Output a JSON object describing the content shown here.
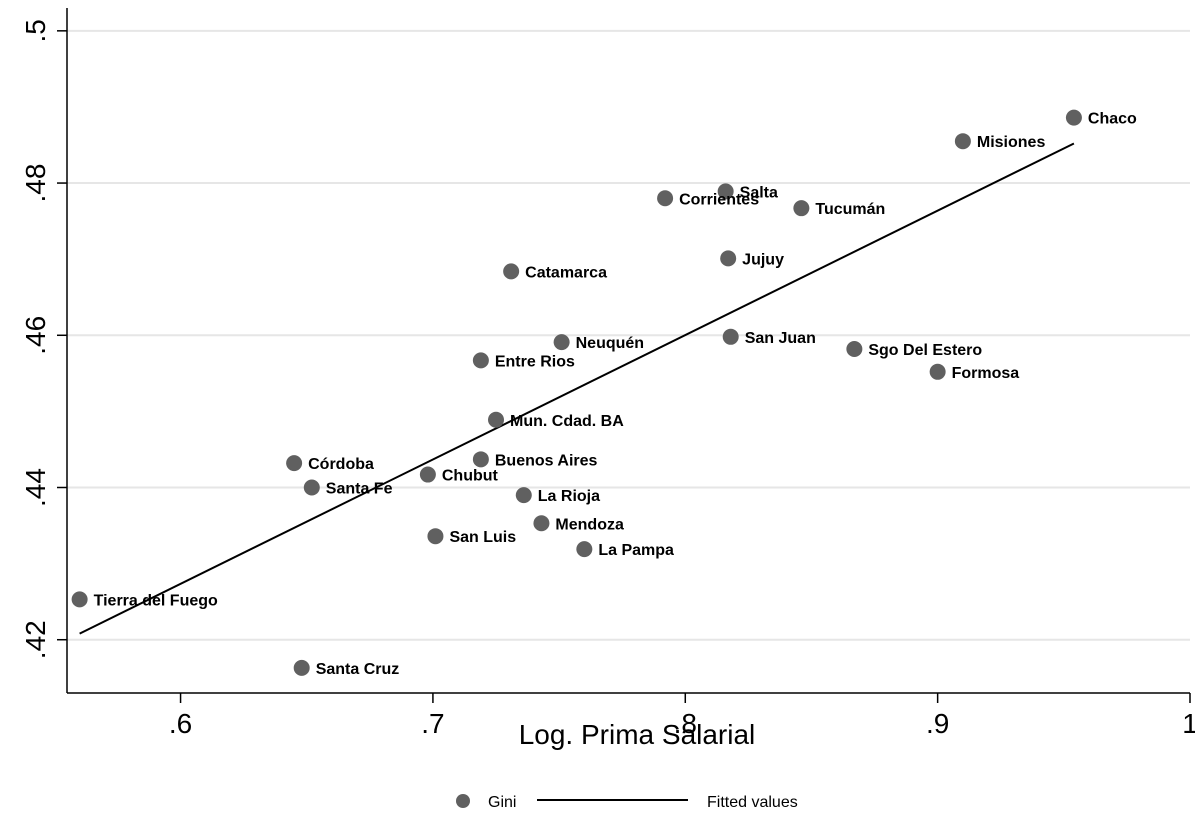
{
  "chart_data": {
    "type": "scatter",
    "xlabel": "Log. Prima Salarial",
    "ylabel": "",
    "xlim": [
      0.555,
      1.0
    ],
    "ylim": [
      0.413,
      0.503
    ],
    "x_ticks": [
      0.6,
      0.7,
      0.8,
      0.9,
      1.0
    ],
    "x_tick_labels": [
      ".6",
      ".7",
      ".8",
      ".9",
      "1"
    ],
    "y_ticks": [
      0.42,
      0.44,
      0.46,
      0.48,
      0.5
    ],
    "y_tick_labels": [
      ".42",
      ".44",
      ".46",
      ".48",
      ".5"
    ],
    "grid": "horizontal",
    "legend_position": "bottom",
    "colors": {
      "marker": "#606060",
      "line": "#000000",
      "grid": "#e6e6e6"
    },
    "series": [
      {
        "name": "Gini",
        "kind": "scatter",
        "points": [
          {
            "label": "Chaco",
            "x": 0.954,
            "y": 0.4886
          },
          {
            "label": "Misiones",
            "x": 0.91,
            "y": 0.4855
          },
          {
            "label": "Salta",
            "x": 0.816,
            "y": 0.4789
          },
          {
            "label": "Corrientes",
            "x": 0.792,
            "y": 0.478
          },
          {
            "label": "Tucumán",
            "x": 0.846,
            "y": 0.4767
          },
          {
            "label": "Catamarca",
            "x": 0.731,
            "y": 0.4684
          },
          {
            "label": "Jujuy",
            "x": 0.817,
            "y": 0.4701
          },
          {
            "label": "San Juan",
            "x": 0.818,
            "y": 0.4598
          },
          {
            "label": "Neuquén",
            "x": 0.751,
            "y": 0.4591
          },
          {
            "label": "Sgo Del Estero",
            "x": 0.867,
            "y": 0.4582
          },
          {
            "label": "Entre Rios",
            "x": 0.719,
            "y": 0.4567
          },
          {
            "label": "Formosa",
            "x": 0.9,
            "y": 0.4552
          },
          {
            "label": "Mun. Cdad. BA",
            "x": 0.725,
            "y": 0.4489
          },
          {
            "label": "Buenos Aires",
            "x": 0.719,
            "y": 0.4437
          },
          {
            "label": "Córdoba",
            "x": 0.645,
            "y": 0.4432
          },
          {
            "label": "Chubut",
            "x": 0.698,
            "y": 0.4417
          },
          {
            "label": "Santa Fe",
            "x": 0.652,
            "y": 0.44
          },
          {
            "label": "La Rioja",
            "x": 0.736,
            "y": 0.439
          },
          {
            "label": "Mendoza",
            "x": 0.743,
            "y": 0.4353
          },
          {
            "label": "San Luis",
            "x": 0.701,
            "y": 0.4336
          },
          {
            "label": "La Pampa",
            "x": 0.76,
            "y": 0.4319
          },
          {
            "label": "Tierra del Fuego",
            "x": 0.56,
            "y": 0.4253
          },
          {
            "label": "Santa Cruz",
            "x": 0.648,
            "y": 0.4163
          }
        ]
      },
      {
        "name": "Fitted values",
        "kind": "line",
        "points": [
          {
            "x": 0.56,
            "y": 0.4208
          },
          {
            "x": 0.954,
            "y": 0.4852
          }
        ]
      }
    ]
  }
}
